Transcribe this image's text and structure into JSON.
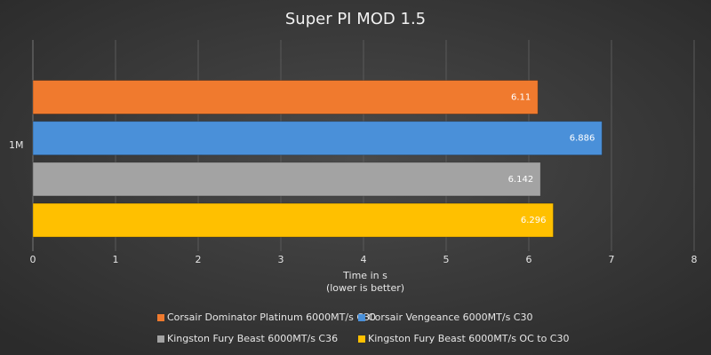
{
  "chart_data": {
    "type": "bar",
    "orientation": "horizontal",
    "title": "Super PI MOD 1.5",
    "categories": [
      "1M"
    ],
    "xlabel": [
      "Time in s",
      "(lower is better)"
    ],
    "series": [
      {
        "name": "Corsair Dominator Platinum 6000MT/s C30",
        "color": "#f07a2e",
        "values": [
          6.11
        ]
      },
      {
        "name": "Corsair Vengeance 6000MT/s C30",
        "color": "#4a90d9",
        "values": [
          6.886
        ]
      },
      {
        "name": "Kingston Fury Beast 6000MT/s C36",
        "color": "#a3a3a3",
        "values": [
          6.142
        ]
      },
      {
        "name": "Kingston Fury Beast 6000MT/s OC to C30",
        "color": "#ffc000",
        "values": [
          6.296
        ]
      }
    ],
    "xlim": [
      0,
      8
    ],
    "xticks": [
      0,
      1,
      2,
      3,
      4,
      5,
      6,
      7,
      8
    ],
    "grid": true
  }
}
